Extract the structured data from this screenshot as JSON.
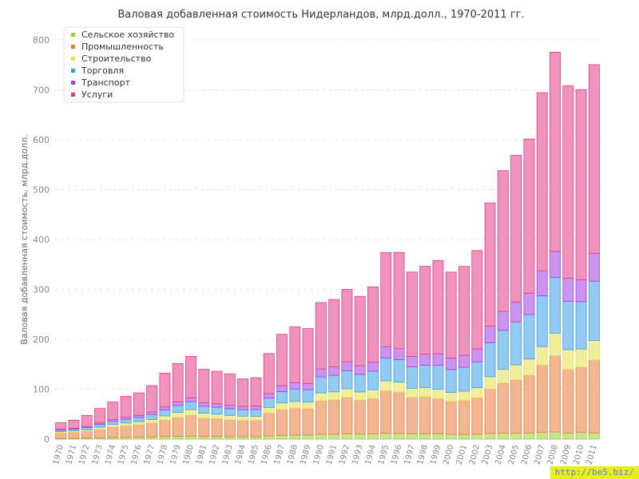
{
  "watermark": "http://be5.biz/",
  "chart_data": {
    "type": "bar",
    "stacked": true,
    "title": "Валовая добавленная стоимость Нидерландов, млрд.долл., 1970-2011 гг.",
    "xlabel": "",
    "ylabel": "Валовая добавленная стоимость, млрд.долл.",
    "ylim": [
      0,
      800
    ],
    "yticks": [
      0,
      100,
      200,
      300,
      400,
      500,
      600,
      700,
      800
    ],
    "grid": true,
    "legend_position": "top-left",
    "categories": [
      "1970",
      "1971",
      "1972",
      "1973",
      "1974",
      "1975",
      "1976",
      "1977",
      "1978",
      "1979",
      "1980",
      "1981",
      "1982",
      "1983",
      "1984",
      "1985",
      "1986",
      "1987",
      "1988",
      "1989",
      "1990",
      "1991",
      "1992",
      "1993",
      "1994",
      "1995",
      "1996",
      "1997",
      "1998",
      "1999",
      "2000",
      "2001",
      "2002",
      "2003",
      "2004",
      "2005",
      "2006",
      "2007",
      "2008",
      "2009",
      "2010",
      "2011"
    ],
    "series": [
      {
        "name": "Сельское хозяйство",
        "color": "#9acd32",
        "values": [
          1.5,
          1.7,
          2,
          2.6,
          3.2,
          3.6,
          3.9,
          4.3,
          5,
          5.6,
          6,
          5.2,
          5,
          4.8,
          4.6,
          4.6,
          6.3,
          7.4,
          8,
          8,
          9.6,
          9.8,
          10.6,
          10,
          10.5,
          11.7,
          11.2,
          10.7,
          10.7,
          10.4,
          9.6,
          9.5,
          9.9,
          11.2,
          12,
          11.8,
          12.4,
          13.4,
          14.3,
          12.3,
          13.5,
          12.5
        ]
      },
      {
        "name": "Промышленность",
        "color": "#e87a38",
        "values": [
          11,
          12,
          13.5,
          17,
          21,
          23,
          25,
          28,
          33,
          38,
          42,
          37,
          36,
          34,
          33,
          33,
          46,
          52,
          54,
          53,
          67,
          69,
          73,
          68,
          71,
          85,
          83,
          73,
          74,
          71,
          66,
          68,
          73,
          89,
          100,
          107,
          116,
          135,
          153,
          127,
          131,
          146
        ]
      },
      {
        "name": "Строительство",
        "color": "#e6e04a",
        "values": [
          2.5,
          2.8,
          3.3,
          4.2,
          5,
          5.6,
          6,
          7,
          8.5,
          10,
          11,
          9.6,
          9,
          8.7,
          8.3,
          8.2,
          11,
          13,
          13.5,
          13,
          16,
          16,
          17.5,
          16.5,
          17.5,
          20,
          20,
          18,
          18.5,
          18.5,
          18,
          18.5,
          20,
          25,
          28,
          30,
          32,
          37,
          45,
          40,
          36,
          39
        ]
      },
      {
        "name": "Торговля",
        "color": "#3a9ee6",
        "values": [
          3,
          3.5,
          4.3,
          5.5,
          6.5,
          7.5,
          8.5,
          10,
          12,
          14,
          16,
          14,
          14,
          13.5,
          13,
          13.5,
          19,
          23,
          25,
          25,
          32,
          33,
          36,
          35,
          37,
          46,
          45,
          43,
          45,
          48,
          46,
          48,
          52,
          68,
          78,
          86,
          89,
          102,
          112,
          97,
          95,
          119
        ]
      },
      {
        "name": "Транспорт",
        "color": "#a13de0",
        "values": [
          1.7,
          1.9,
          2.3,
          3,
          3.5,
          4,
          4.3,
          4.9,
          5.8,
          6.8,
          7.8,
          7.1,
          6.9,
          6.7,
          6.6,
          6.8,
          9,
          11.5,
          12.5,
          12.5,
          16,
          17,
          18,
          17.5,
          18,
          22,
          22,
          21,
          22,
          23,
          23,
          24,
          26,
          33,
          38,
          40,
          43,
          50,
          52,
          46,
          44,
          56
        ]
      },
      {
        "name": "Услуги",
        "color": "#e23b87",
        "values": [
          13,
          16,
          22,
          29,
          35,
          42,
          45,
          53,
          68,
          77,
          83,
          67,
          65,
          63,
          55,
          57,
          80,
          103,
          112,
          110,
          133,
          135,
          145,
          139,
          151,
          189,
          193,
          169,
          176,
          187,
          172,
          178,
          197,
          247,
          282,
          294,
          309,
          357,
          399,
          386,
          381,
          378
        ]
      }
    ]
  }
}
